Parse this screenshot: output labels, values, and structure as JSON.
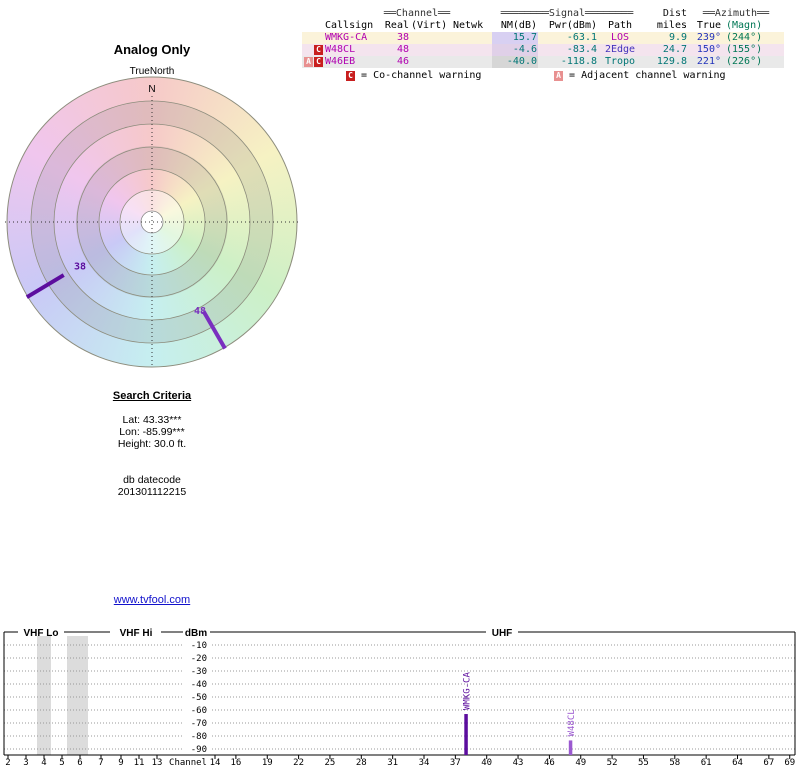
{
  "radar": {
    "title": "Analog Only",
    "north_label": "TrueNorth",
    "north_letter": "N",
    "markers": [
      {
        "label": "38",
        "azimuth_true_deg": 239,
        "color": "#5c0d9e"
      },
      {
        "label": "48",
        "azimuth_true_deg": 150,
        "color": "#7a2fbf"
      }
    ]
  },
  "table": {
    "group_headers": {
      "channel": "══Channel══",
      "signal": "════════Signal════════",
      "dist": "Dist",
      "azimuth": "══Azimuth══"
    },
    "columns": {
      "callsign": "Callsign",
      "real": "Real",
      "virt": "(Virt)",
      "netwk": "Netwk",
      "nm": "NM(dB)",
      "pwr": "Pwr(dBm)",
      "path": "Path",
      "miles": "miles",
      "true": "True",
      "magn": "(Magn)"
    },
    "rows": [
      {
        "badges": [],
        "callsign": "WMKG-CA",
        "real": "38",
        "virt": "",
        "netwk": "",
        "nm": "15.7",
        "pwr": "-63.1",
        "path": "LOS",
        "miles": "9.9",
        "true": "239°",
        "magn": "(244°)"
      },
      {
        "badges": [
          "C"
        ],
        "callsign": "W48CL",
        "real": "48",
        "virt": "",
        "netwk": "",
        "nm": "-4.6",
        "pwr": "-83.4",
        "path": "2Edge",
        "miles": "24.7",
        "true": "150°",
        "magn": "(155°)"
      },
      {
        "badges": [
          "A",
          "C"
        ],
        "callsign": "W46EB",
        "real": "46",
        "virt": "",
        "netwk": "",
        "nm": "-40.0",
        "pwr": "-118.8",
        "path": "Tropo",
        "miles": "129.8",
        "true": "221°",
        "magn": "(226°)"
      }
    ],
    "row_colors": [
      {
        "bg": "#fbf3da",
        "nm_bg": "#d8d0f2"
      },
      {
        "bg": "#f4e4ee",
        "nm_bg": "#e0d0e8"
      },
      {
        "bg": "#e9e9e9",
        "nm_bg": "#d6d6d6"
      }
    ],
    "path_colors": {
      "LOS": "#b000b0",
      "2Edge": "#4433bb",
      "Tropo": "#007575"
    },
    "badge_colors": {
      "C": "#c81e1e",
      "A": "#e89090"
    },
    "legend": [
      {
        "badge": "C",
        "text": "= Co-channel warning"
      },
      {
        "badge": "A",
        "text": "= Adjacent channel warning"
      }
    ]
  },
  "search": {
    "title": "Search Criteria",
    "lat": "Lat: 43.33***",
    "lon": "Lon: -85.99***",
    "height": "Height: 30.0 ft.",
    "db_label": "db datecode",
    "db_value": "201301112215"
  },
  "link": {
    "text": "www.tvfool.com"
  },
  "chart": {
    "sections": {
      "vhf_lo": "VHF Lo",
      "vhf_hi": "VHF Hi",
      "dbm": "dBm",
      "uhf": "UHF"
    },
    "channel_axis_label": "Channel",
    "y_ticks": [
      "-10",
      "-20",
      "-30",
      "-40",
      "-50",
      "-60",
      "-70",
      "-80",
      "-90"
    ],
    "vhf_channels": [
      "2",
      "3",
      "4",
      "5",
      "6",
      "7",
      "9",
      "11",
      "13"
    ],
    "uhf_channels": [
      "14",
      "16",
      "19",
      "22",
      "25",
      "28",
      "31",
      "34",
      "37",
      "40",
      "43",
      "46",
      "49",
      "52",
      "55",
      "58",
      "61",
      "64",
      "67",
      "69"
    ]
  },
  "chart_data": [
    {
      "type": "radar",
      "title": "Analog Only",
      "orientation": "true-north-up",
      "points": [
        {
          "callsign": "WMKG-CA",
          "channel": 38,
          "azimuth_true_deg": 239,
          "azimuth_magnetic_deg": 244,
          "distance_miles": 9.9
        },
        {
          "callsign": "W48CL",
          "channel": 48,
          "azimuth_true_deg": 150,
          "azimuth_magnetic_deg": 155,
          "distance_miles": 24.7
        }
      ]
    },
    {
      "type": "bar",
      "title": "Signal power by channel",
      "xlabel": "Channel",
      "ylabel": "dBm",
      "ylim": [
        -90,
        -10
      ],
      "x_sections": [
        "VHF Lo",
        "VHF Hi",
        "UHF"
      ],
      "stations": [
        {
          "name": "WMKG-CA",
          "channel": 38,
          "power_dbm": -63.1,
          "color": "#5c0d9e"
        },
        {
          "name": "W48CL",
          "channel": 48,
          "power_dbm": -83.4,
          "color": "#9b59d0"
        }
      ],
      "shaded_channel_bands": [
        [
          3.6,
          4.4
        ],
        [
          5.3,
          6.5
        ]
      ],
      "grid": true
    }
  ]
}
